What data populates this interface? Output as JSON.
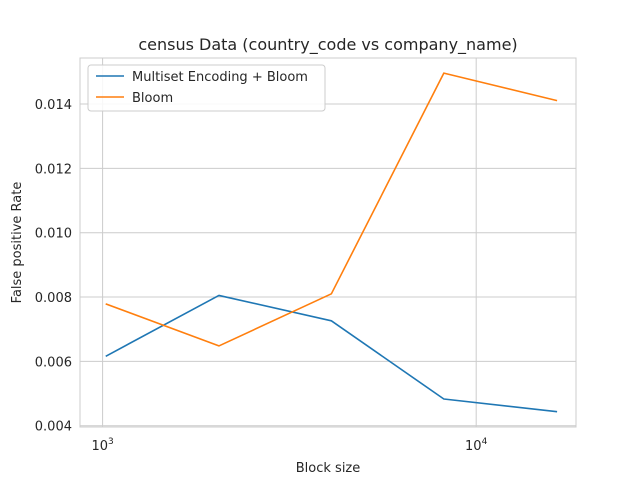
{
  "chart_data": {
    "type": "line",
    "title": "census Data (country_code vs company_name)",
    "xlabel": "Block size",
    "ylabel": "False positive Rate",
    "xscale": "log",
    "xlim": [
      870,
      18500
    ],
    "ylim": [
      0.00396,
      0.01543
    ],
    "grid": true,
    "legend_position": "top-left",
    "x": [
      1024,
      2048,
      4096,
      8192,
      16384
    ],
    "x_ticks": [
      1000,
      10000
    ],
    "x_tick_labels": [
      {
        "base": "10",
        "exp": "3"
      },
      {
        "base": "10",
        "exp": "4"
      }
    ],
    "y_ticks": [
      0.004,
      0.006,
      0.008,
      0.01,
      0.012,
      0.014
    ],
    "y_tick_labels": [
      "0.004",
      "0.006",
      "0.008",
      "0.010",
      "0.012",
      "0.014"
    ],
    "series": [
      {
        "name": "Multiset Encoding + Bloom",
        "color": "#1f77b4",
        "values": [
          0.00617,
          0.00805,
          0.00726,
          0.00483,
          0.00444
        ]
      },
      {
        "name": "Bloom",
        "color": "#ff7f0e",
        "values": [
          0.00778,
          0.00648,
          0.0081,
          0.01496,
          0.01411
        ]
      }
    ]
  }
}
